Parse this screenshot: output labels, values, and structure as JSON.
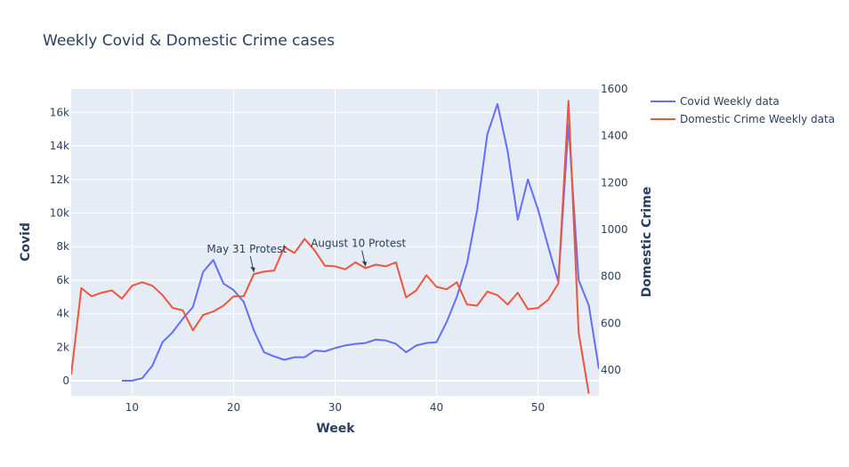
{
  "chart_data": {
    "type": "line",
    "title": "Weekly Covid & Domestic Crime cases",
    "xlabel": "Week",
    "ylabel_left": "Covid",
    "ylabel_right": "Domestic Crime",
    "xlim": [
      4,
      56
    ],
    "ylim_left": [
      -900,
      17400
    ],
    "ylim_right": [
      290,
      1600
    ],
    "x_ticks": [
      10,
      20,
      30,
      40,
      50
    ],
    "y_left_ticks": [
      {
        "v": 0,
        "label": "0"
      },
      {
        "v": 2000,
        "label": "2k"
      },
      {
        "v": 4000,
        "label": "4k"
      },
      {
        "v": 6000,
        "label": "6k"
      },
      {
        "v": 8000,
        "label": "8k"
      },
      {
        "v": 10000,
        "label": "10k"
      },
      {
        "v": 12000,
        "label": "12k"
      },
      {
        "v": 14000,
        "label": "14k"
      },
      {
        "v": 16000,
        "label": "16k"
      }
    ],
    "y_right_ticks": [
      {
        "v": 400,
        "label": "400"
      },
      {
        "v": 600,
        "label": "600"
      },
      {
        "v": 800,
        "label": "800"
      },
      {
        "v": 1000,
        "label": "1000"
      },
      {
        "v": 1200,
        "label": "1200"
      },
      {
        "v": 1400,
        "label": "1400"
      },
      {
        "v": 1600,
        "label": "1600"
      }
    ],
    "grid": true,
    "legend_position": "top-right",
    "series": [
      {
        "name": "Covid Weekly data",
        "color": "#636efa",
        "axis": "left",
        "x": [
          9,
          10,
          11,
          12,
          13,
          14,
          15,
          16,
          17,
          18,
          19,
          20,
          21,
          22,
          23,
          24,
          25,
          26,
          27,
          28,
          29,
          30,
          31,
          32,
          33,
          34,
          35,
          36,
          37,
          38,
          39,
          40,
          41,
          42,
          43,
          44,
          45,
          46,
          47,
          48,
          49,
          50,
          51,
          52,
          53,
          54,
          55,
          56
        ],
        "y": [
          0,
          0,
          150,
          900,
          2300,
          2900,
          3700,
          4400,
          6500,
          7200,
          5800,
          5400,
          4700,
          3000,
          1700,
          1450,
          1250,
          1400,
          1400,
          1800,
          1750,
          1950,
          2100,
          2200,
          2250,
          2450,
          2400,
          2200,
          1700,
          2100,
          2250,
          2300,
          3500,
          5000,
          7000,
          10200,
          14700,
          16500,
          13700,
          9600,
          12000,
          10200,
          8000,
          5900,
          15300,
          6000,
          4500,
          700
        ]
      },
      {
        "name": "Domestic Crime Weekly data",
        "color": "#ef553b",
        "axis": "right",
        "x": [
          4,
          5,
          6,
          7,
          8,
          9,
          10,
          11,
          12,
          13,
          14,
          15,
          16,
          17,
          18,
          19,
          20,
          21,
          22,
          23,
          24,
          25,
          26,
          27,
          28,
          29,
          30,
          31,
          32,
          33,
          34,
          35,
          36,
          37,
          38,
          39,
          40,
          41,
          42,
          43,
          44,
          45,
          46,
          47,
          48,
          49,
          50,
          51,
          52,
          53,
          54,
          55
        ],
        "y": [
          380,
          750,
          715,
          730,
          740,
          705,
          760,
          775,
          760,
          720,
          665,
          655,
          570,
          635,
          650,
          675,
          715,
          715,
          810,
          820,
          825,
          925,
          900,
          960,
          910,
          845,
          843,
          830,
          860,
          835,
          850,
          843,
          860,
          710,
          740,
          805,
          755,
          745,
          775,
          680,
          675,
          735,
          720,
          680,
          730,
          660,
          665,
          700,
          770,
          1550,
          560,
          300
        ]
      }
    ],
    "annotations": [
      {
        "text": "May 31 Protest",
        "x": 22,
        "y_right": 810
      },
      {
        "text": "August 10 Protest",
        "x": 33,
        "y_right": 835
      }
    ]
  }
}
